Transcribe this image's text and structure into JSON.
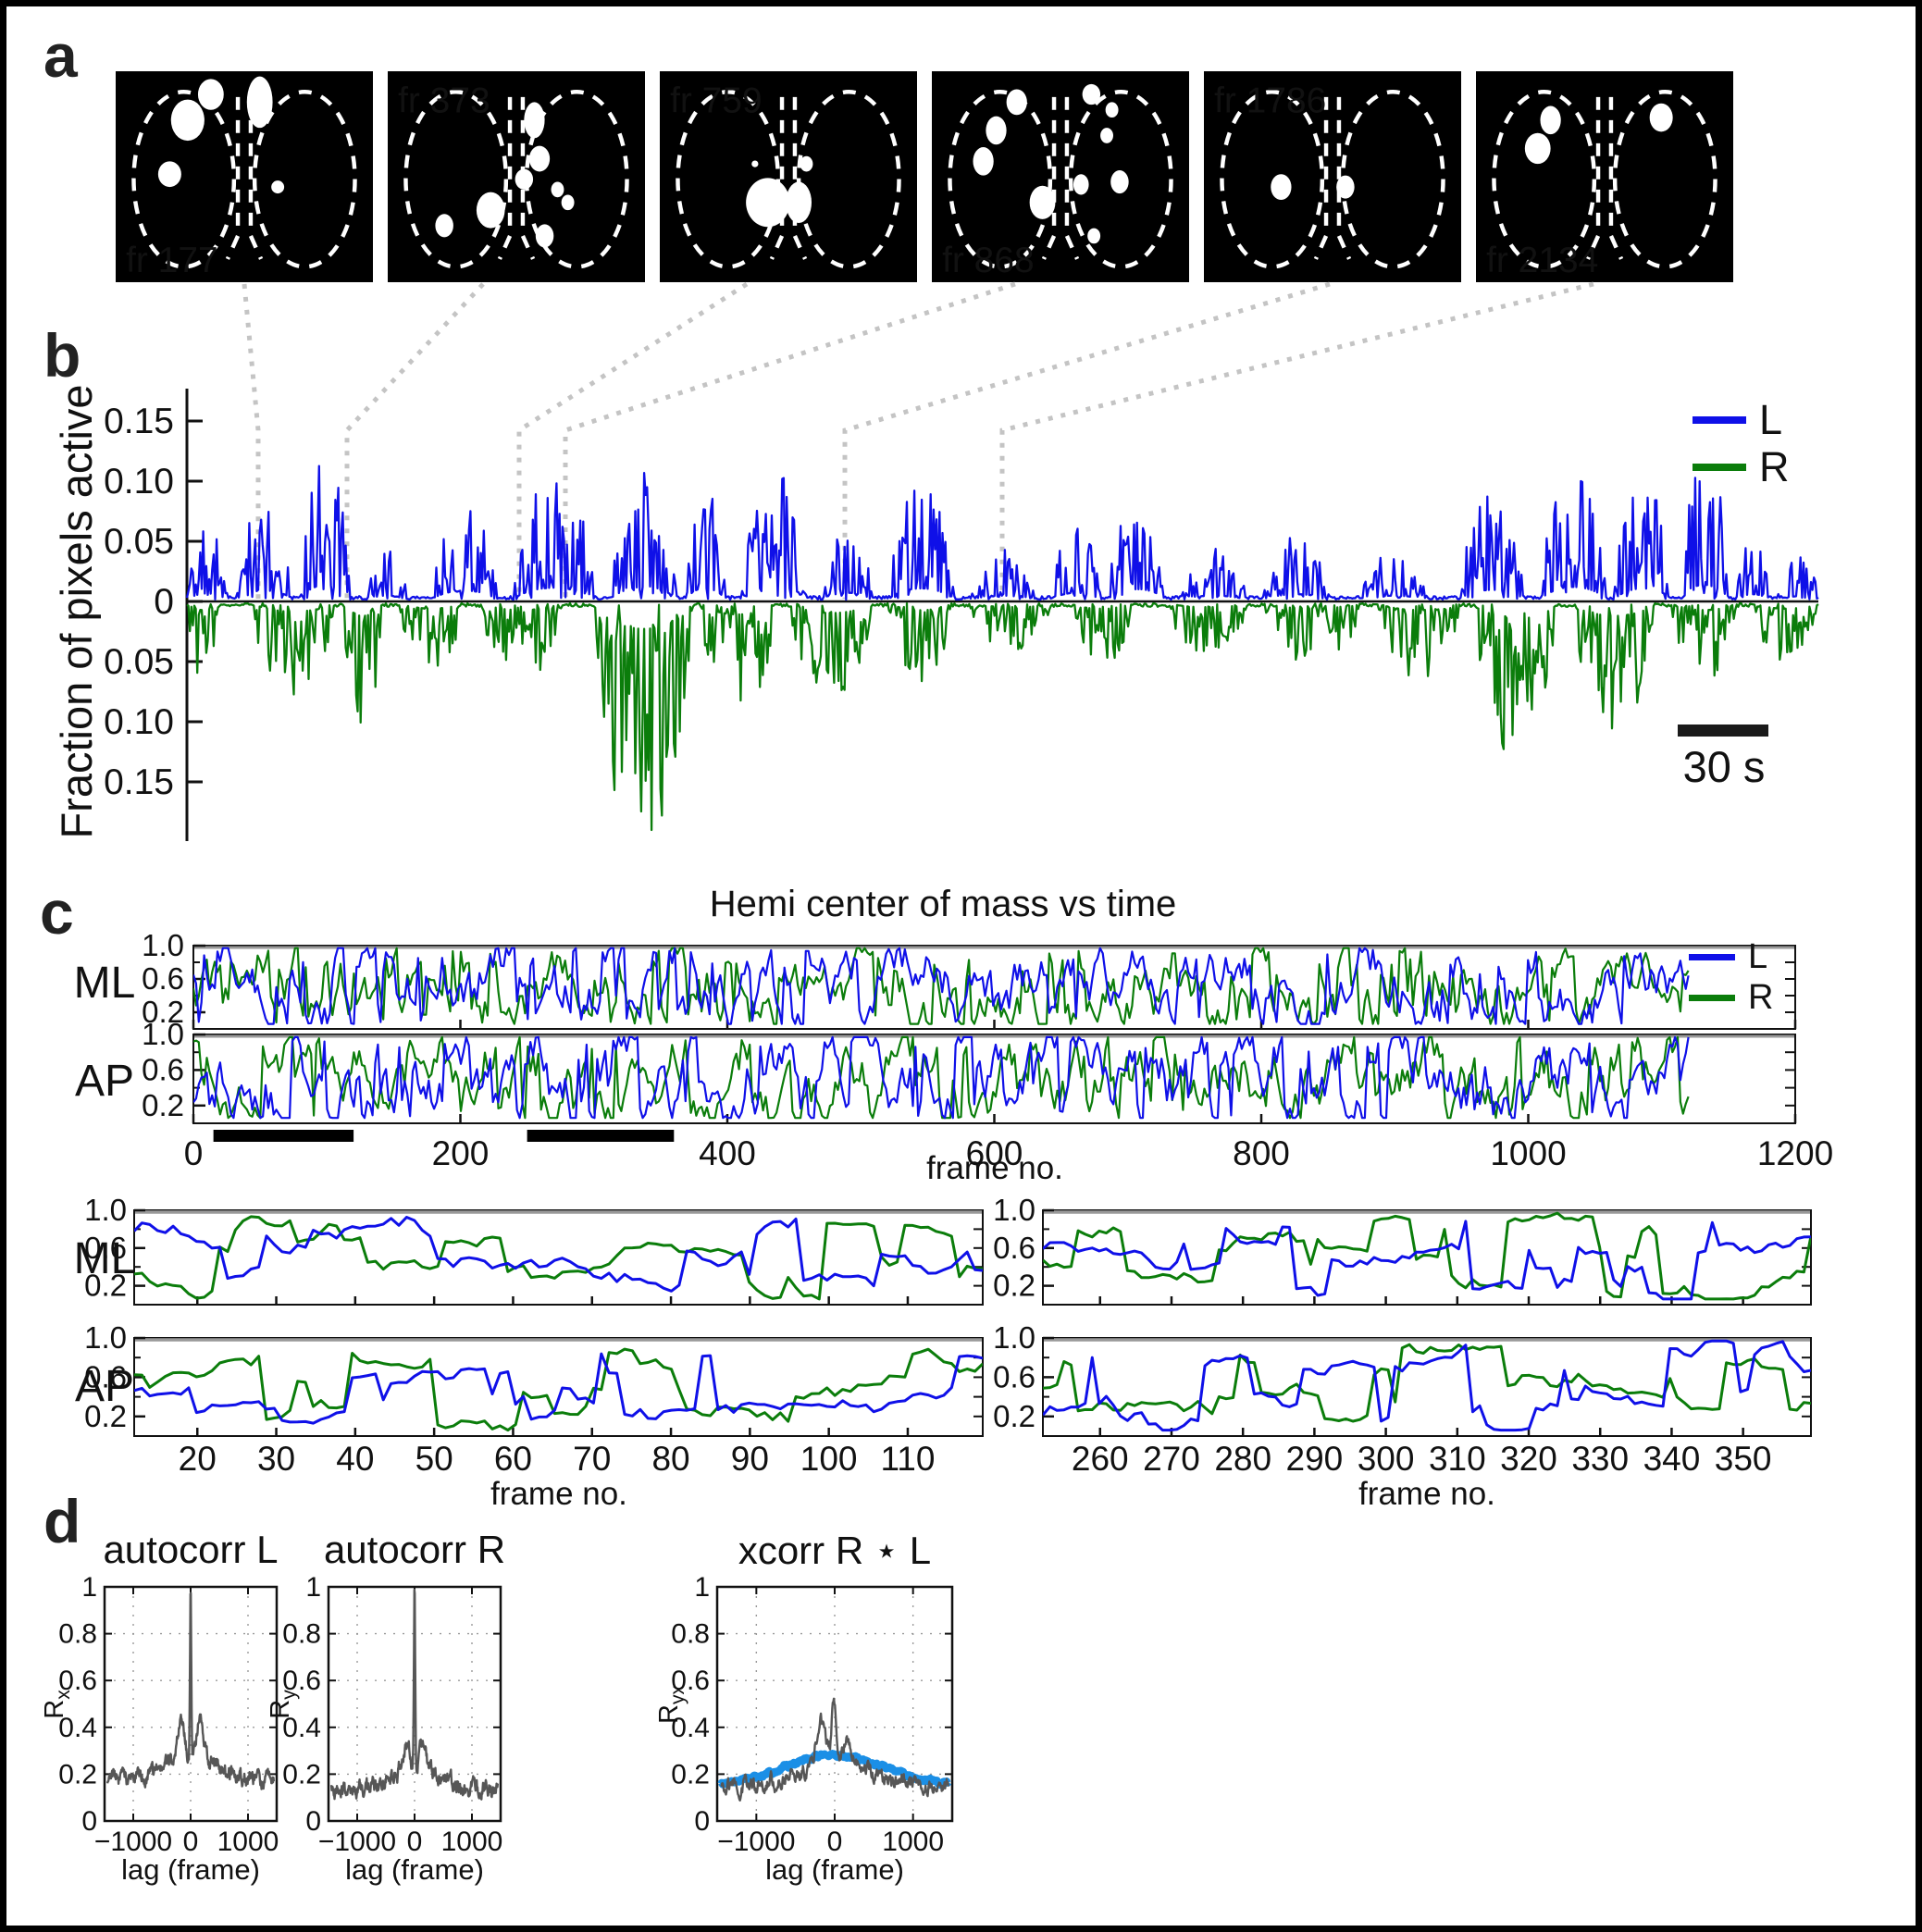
{
  "figure": {
    "panel_labels": {
      "a": "a",
      "b": "b",
      "c": "c",
      "d": "d"
    }
  },
  "colors": {
    "trace_left": "#0f10e8",
    "trace_right": "#0b7d0b",
    "correlation_trace": "#565656",
    "shuffle_band": "#1b8fe6",
    "connector": "#c4c4c4",
    "frame_bg": "#000000",
    "frame_fg": "#ffffff",
    "bar_black": "#000000"
  },
  "panel_a": {
    "frames": [
      {
        "label": "fr 177",
        "label_pos": "bottom-left",
        "blobs": [
          [
            37,
            9,
            5,
            6
          ],
          [
            28,
            19,
            6.5,
            8
          ],
          [
            56,
            12,
            5,
            10
          ],
          [
            21,
            40,
            4.5,
            5
          ],
          [
            63,
            45,
            2.5,
            2.5
          ]
        ]
      },
      {
        "label": "fr 373",
        "label_pos": "top-left",
        "blobs": [
          [
            57,
            19,
            4,
            7
          ],
          [
            59,
            34,
            4,
            5
          ],
          [
            53,
            42,
            3.5,
            4
          ],
          [
            66,
            46,
            2.5,
            3
          ],
          [
            70,
            51,
            2.5,
            3
          ],
          [
            40,
            54,
            5.5,
            7
          ],
          [
            22,
            60,
            3.5,
            4.5
          ],
          [
            61,
            64,
            3.5,
            4.5
          ]
        ]
      },
      {
        "label": "fr 759",
        "label_pos": "top-left",
        "blobs": [
          [
            42,
            51,
            8.5,
            9.5
          ],
          [
            54,
            51,
            5,
            8
          ],
          [
            57,
            36,
            2.5,
            3
          ],
          [
            37,
            36,
            1.3,
            1.3
          ]
        ]
      },
      {
        "label": "fr 868",
        "label_pos": "bottom-left",
        "blobs": [
          [
            33,
            12,
            4,
            5
          ],
          [
            25,
            23,
            4,
            5.5
          ],
          [
            20,
            35,
            4,
            5.5
          ],
          [
            43,
            51,
            5,
            6.5
          ],
          [
            62,
            9,
            3.5,
            4
          ],
          [
            70,
            15,
            2.5,
            3
          ],
          [
            68,
            25,
            2.5,
            3
          ],
          [
            58,
            44,
            3,
            4
          ],
          [
            73,
            43,
            3.5,
            4.5
          ],
          [
            63,
            64,
            2.5,
            3
          ]
        ]
      },
      {
        "label": "fr 1786",
        "label_pos": "top-left",
        "blobs": [
          [
            30,
            45,
            4,
            5
          ],
          [
            55,
            45,
            3.5,
            4.5
          ]
        ]
      },
      {
        "label": "fr 2134",
        "label_pos": "bottom-left",
        "blobs": [
          [
            29,
            19,
            4,
            5.5
          ],
          [
            24,
            30,
            5,
            6
          ],
          [
            72,
            18,
            4.5,
            5.5
          ]
        ]
      }
    ]
  },
  "chart_data": [
    {
      "type": "area",
      "id": "fraction-pixels-active",
      "ylabel": "Fraction of pixels active",
      "ylim": [
        -0.19,
        0.19
      ],
      "ytick_values": [
        0.15,
        0.1,
        0.05,
        0,
        -0.05,
        -0.1,
        -0.15
      ],
      "ytick_labels": [
        "0.15",
        "0.10",
        "0.05",
        "0",
        "0.05",
        "0.10",
        "0.15"
      ],
      "scalebar_label": "30 s",
      "scalebar_seconds": 30,
      "legend_position": "top-right",
      "series": [
        {
          "name": "L",
          "side": "above",
          "max_value": 0.115,
          "bouts": [
            [
              0,
              0.025,
              0.055
            ],
            [
              0.03,
              0.065,
              0.075
            ],
            [
              0.07,
              0.1,
              0.115
            ],
            [
              0.11,
              0.135,
              0.04
            ],
            [
              0.15,
              0.19,
              0.075
            ],
            [
              0.2,
              0.25,
              0.095
            ],
            [
              0.26,
              0.3,
              0.1
            ],
            [
              0.305,
              0.33,
              0.09
            ],
            [
              0.34,
              0.38,
              0.105
            ],
            [
              0.39,
              0.42,
              0.06
            ],
            [
              0.43,
              0.47,
              0.09
            ],
            [
              0.48,
              0.52,
              0.04
            ],
            [
              0.53,
              0.56,
              0.06
            ],
            [
              0.565,
              0.6,
              0.085
            ],
            [
              0.61,
              0.65,
              0.04
            ],
            [
              0.66,
              0.7,
              0.05
            ],
            [
              0.72,
              0.76,
              0.04
            ],
            [
              0.78,
              0.82,
              0.08
            ],
            [
              0.83,
              0.87,
              0.1
            ],
            [
              0.875,
              0.91,
              0.09
            ],
            [
              0.915,
              0.945,
              0.115
            ],
            [
              0.95,
              0.97,
              0.05
            ],
            [
              0.975,
              1,
              0.035
            ]
          ]
        },
        {
          "name": "R",
          "side": "below",
          "max_value": 0.19,
          "bouts": [
            [
              0,
              0.02,
              0.06
            ],
            [
              0.04,
              0.09,
              0.07
            ],
            [
              0.095,
              0.12,
              0.1
            ],
            [
              0.13,
              0.17,
              0.05
            ],
            [
              0.18,
              0.23,
              0.06
            ],
            [
              0.25,
              0.31,
              0.19
            ],
            [
              0.315,
              0.36,
              0.09
            ],
            [
              0.37,
              0.42,
              0.08
            ],
            [
              0.43,
              0.47,
              0.06
            ],
            [
              0.48,
              0.53,
              0.04
            ],
            [
              0.54,
              0.58,
              0.05
            ],
            [
              0.6,
              0.65,
              0.04
            ],
            [
              0.66,
              0.72,
              0.05
            ],
            [
              0.73,
              0.78,
              0.06
            ],
            [
              0.79,
              0.84,
              0.12
            ],
            [
              0.85,
              0.9,
              0.1
            ],
            [
              0.91,
              0.95,
              0.06
            ],
            [
              0.96,
              1,
              0.05
            ]
          ]
        }
      ]
    },
    {
      "type": "line",
      "id": "hemi-center-of-mass",
      "title": "Hemi center of mass vs time",
      "rows": [
        "ML",
        "AP"
      ],
      "xlabel": "frame no.",
      "xlim": [
        0,
        1200
      ],
      "xticks": [
        0,
        200,
        400,
        600,
        800,
        1000,
        1200
      ],
      "ytick_values": [
        1.0,
        0.6,
        0.2
      ],
      "ytick_labels": [
        "1.0",
        "0.6",
        "0.2"
      ],
      "value_range": [
        0.06,
        0.97
      ],
      "data_end_frame": 1120,
      "highlight_bars_frames": [
        [
          15,
          120
        ],
        [
          250,
          360
        ]
      ],
      "series": [
        {
          "name": "L"
        },
        {
          "name": "R"
        }
      ]
    },
    {
      "type": "line",
      "id": "hemi-center-of-mass-zoom",
      "rows": [
        "ML",
        "AP"
      ],
      "xlabel": "frame no.",
      "ytick_values": [
        1.0,
        0.6,
        0.2
      ],
      "ytick_labels": [
        "1.0",
        "0.6",
        "0.2"
      ],
      "value_range": [
        0.06,
        0.97
      ],
      "columns": [
        {
          "xlim": [
            12,
            119.5
          ],
          "xticks": [
            20,
            30,
            40,
            50,
            60,
            70,
            80,
            90,
            100,
            110
          ]
        },
        {
          "xlim": [
            252,
            359.5
          ],
          "xticks": [
            260,
            270,
            280,
            290,
            300,
            310,
            320,
            330,
            340,
            350
          ]
        }
      ],
      "series": [
        {
          "name": "L"
        },
        {
          "name": "R"
        }
      ]
    },
    {
      "type": "line",
      "id": "correlations",
      "xlabel": "lag (frame)",
      "xlim": [
        -1500,
        1500
      ],
      "xticks": [
        -1000,
        0,
        1000
      ],
      "xtick_labels": [
        "−1000",
        "0",
        "1000"
      ],
      "ylim": [
        0,
        1
      ],
      "ytick_values": [
        0,
        0.2,
        0.4,
        0.6,
        0.8,
        1
      ],
      "ytick_labels": [
        "0",
        "0.2",
        "0.4",
        "0.6",
        "0.8",
        "1"
      ],
      "grid": "dotted",
      "plots": [
        {
          "title": "autocorr L",
          "ylabel_main": "R",
          "ylabel_sub": "x",
          "baseline": 0.17,
          "center_peak": {
            "lag": 0,
            "value": 1.0
          },
          "side_peaks": [
            {
              "lag": -170,
              "value": 0.42
            },
            {
              "lag": 170,
              "value": 0.42
            }
          ]
        },
        {
          "title": "autocorr R",
          "ylabel_main": "R",
          "ylabel_sub": "y",
          "baseline": 0.13,
          "center_peak": {
            "lag": 0,
            "value": 1.0
          },
          "side_peaks": [
            {
              "lag": -150,
              "value": 0.3
            },
            {
              "lag": 150,
              "value": 0.3
            }
          ]
        },
        {
          "title": "xcorr R ⋆ L",
          "ylabel_main": "R",
          "ylabel_sub": "yx",
          "baseline": 0.15,
          "center_peak": {
            "lag": -10,
            "value": 0.54
          },
          "side_peaks": [
            {
              "lag": -170,
              "value": 0.41
            },
            {
              "lag": 150,
              "value": 0.32
            }
          ],
          "shuffle_band": {
            "center_value": 0.28,
            "edge_value": 0.15
          }
        }
      ]
    }
  ]
}
